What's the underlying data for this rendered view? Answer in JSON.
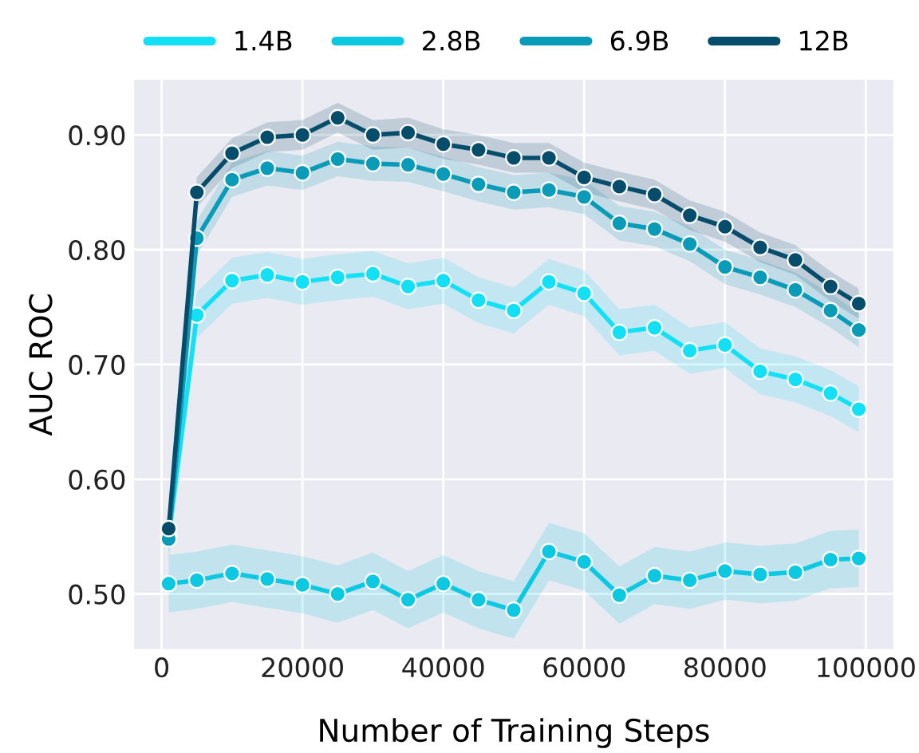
{
  "chart_data": {
    "type": "line",
    "xlabel": "Number of Training Steps",
    "ylabel": "AUC ROC",
    "x": [
      1000,
      5000,
      10000,
      15000,
      20000,
      25000,
      30000,
      35000,
      40000,
      45000,
      50000,
      55000,
      60000,
      65000,
      70000,
      75000,
      80000,
      85000,
      90000,
      95000,
      99000
    ],
    "series": [
      {
        "name": "1.4B",
        "color": "#14e0f5",
        "values": [
          0.55,
          0.743,
          0.773,
          0.778,
          0.772,
          0.776,
          0.779,
          0.768,
          0.773,
          0.756,
          0.747,
          0.772,
          0.762,
          0.728,
          0.732,
          0.712,
          0.717,
          0.694,
          0.687,
          0.675,
          0.661
        ],
        "lower": [
          0.53,
          0.723,
          0.753,
          0.758,
          0.752,
          0.756,
          0.759,
          0.748,
          0.753,
          0.736,
          0.727,
          0.752,
          0.742,
          0.708,
          0.712,
          0.692,
          0.697,
          0.674,
          0.667,
          0.655,
          0.641
        ],
        "upper": [
          0.57,
          0.763,
          0.793,
          0.798,
          0.792,
          0.796,
          0.799,
          0.788,
          0.793,
          0.776,
          0.767,
          0.792,
          0.782,
          0.748,
          0.752,
          0.732,
          0.737,
          0.714,
          0.707,
          0.695,
          0.681
        ]
      },
      {
        "name": "2.8B",
        "color": "#0cc8e0",
        "values": [
          0.509,
          0.512,
          0.518,
          0.513,
          0.508,
          0.5,
          0.511,
          0.495,
          0.509,
          0.495,
          0.486,
          0.537,
          0.528,
          0.499,
          0.516,
          0.512,
          0.52,
          0.517,
          0.519,
          0.53,
          0.531
        ],
        "lower": [
          0.484,
          0.487,
          0.493,
          0.488,
          0.483,
          0.475,
          0.486,
          0.47,
          0.484,
          0.47,
          0.461,
          0.512,
          0.503,
          0.474,
          0.491,
          0.487,
          0.495,
          0.492,
          0.494,
          0.505,
          0.506
        ],
        "upper": [
          0.534,
          0.537,
          0.543,
          0.538,
          0.533,
          0.525,
          0.536,
          0.52,
          0.534,
          0.52,
          0.511,
          0.562,
          0.553,
          0.524,
          0.541,
          0.537,
          0.545,
          0.542,
          0.544,
          0.555,
          0.556
        ]
      },
      {
        "name": "6.9B",
        "color": "#0a9bb8",
        "values": [
          0.548,
          0.81,
          0.861,
          0.871,
          0.867,
          0.879,
          0.875,
          0.874,
          0.866,
          0.857,
          0.85,
          0.852,
          0.846,
          0.823,
          0.818,
          0.805,
          0.785,
          0.776,
          0.765,
          0.747,
          0.73
        ],
        "lower": [
          0.533,
          0.795,
          0.846,
          0.856,
          0.852,
          0.864,
          0.86,
          0.859,
          0.851,
          0.842,
          0.835,
          0.837,
          0.831,
          0.808,
          0.803,
          0.79,
          0.77,
          0.761,
          0.75,
          0.732,
          0.715
        ],
        "upper": [
          0.563,
          0.825,
          0.876,
          0.886,
          0.882,
          0.894,
          0.89,
          0.889,
          0.881,
          0.872,
          0.865,
          0.867,
          0.861,
          0.838,
          0.833,
          0.82,
          0.8,
          0.791,
          0.78,
          0.762,
          0.745
        ]
      },
      {
        "name": "12B",
        "color": "#064d6b",
        "values": [
          0.557,
          0.85,
          0.884,
          0.898,
          0.9,
          0.915,
          0.9,
          0.902,
          0.892,
          0.887,
          0.88,
          0.88,
          0.863,
          0.855,
          0.848,
          0.83,
          0.82,
          0.802,
          0.791,
          0.768,
          0.753
        ],
        "lower": [
          0.544,
          0.837,
          0.871,
          0.885,
          0.887,
          0.902,
          0.887,
          0.889,
          0.879,
          0.874,
          0.867,
          0.867,
          0.85,
          0.842,
          0.835,
          0.817,
          0.807,
          0.789,
          0.778,
          0.755,
          0.74
        ],
        "upper": [
          0.57,
          0.863,
          0.897,
          0.911,
          0.913,
          0.928,
          0.913,
          0.915,
          0.905,
          0.9,
          0.893,
          0.893,
          0.876,
          0.868,
          0.861,
          0.843,
          0.833,
          0.815,
          0.804,
          0.781,
          0.766
        ]
      }
    ],
    "xlim": [
      -3900,
      103900
    ],
    "xticks": [
      0,
      20000,
      40000,
      60000,
      80000,
      100000
    ],
    "ylim": [
      0.452,
      0.948
    ],
    "yticks": [
      {
        "value": 0.5,
        "label": "0.50"
      },
      {
        "value": 0.6,
        "label": "0.60"
      },
      {
        "value": 0.7,
        "label": "0.70"
      },
      {
        "value": 0.8,
        "label": "0.80"
      },
      {
        "value": 0.9,
        "label": "0.90"
      }
    ],
    "grid": true,
    "legend": "top",
    "marker": "circle",
    "line_style": "solid"
  }
}
